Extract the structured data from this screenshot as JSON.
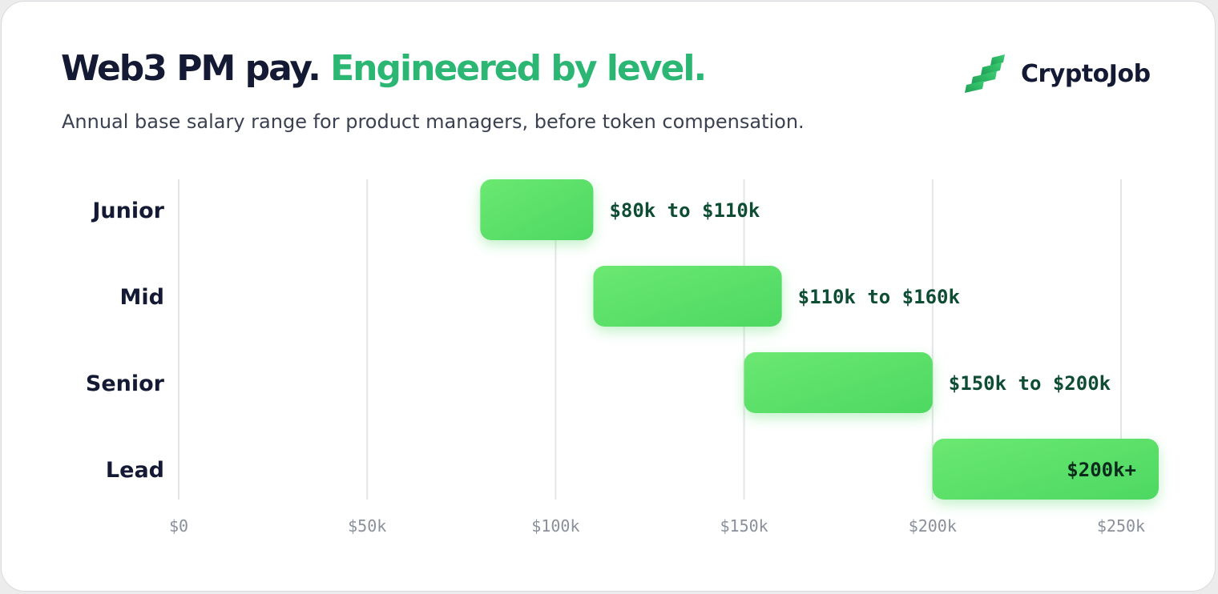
{
  "header": {
    "title_main": "Web3 PM pay.",
    "title_accent": "Engineered by level.",
    "subtitle": "Annual base salary range for product managers, before token compensation."
  },
  "brand": {
    "name": "CryptoJob",
    "icon": "cryptojob-logo-icon"
  },
  "colors": {
    "title": "#141a33",
    "accent": "#2bb673",
    "bar_start": "#6ae872",
    "bar_end": "#4dd862",
    "label": "#0e4d34",
    "grid": "#e3e5e8",
    "tick": "#8a8f99"
  },
  "chart_data": {
    "type": "bar",
    "orientation": "horizontal-range",
    "categories": [
      "Junior",
      "Mid",
      "Senior",
      "Lead"
    ],
    "ranges": [
      {
        "level": "Junior",
        "min": 80,
        "max": 110,
        "label": "$80k to $110k"
      },
      {
        "level": "Mid",
        "min": 110,
        "max": 160,
        "label": "$110k to $160k"
      },
      {
        "level": "Senior",
        "min": 150,
        "max": 200,
        "label": "$150k to $200k"
      },
      {
        "level": "Lead",
        "min": 200,
        "max": 260,
        "label": "$200k+",
        "open_ended": true
      }
    ],
    "x_unit": "thousand USD",
    "xlim": [
      0,
      250
    ],
    "x_ticks": [
      0,
      50,
      100,
      150,
      200,
      250
    ],
    "x_tick_labels": [
      "$0",
      "$50k",
      "$100k",
      "$150k",
      "$200k",
      "$250k"
    ],
    "grid": true,
    "legend": "none"
  }
}
